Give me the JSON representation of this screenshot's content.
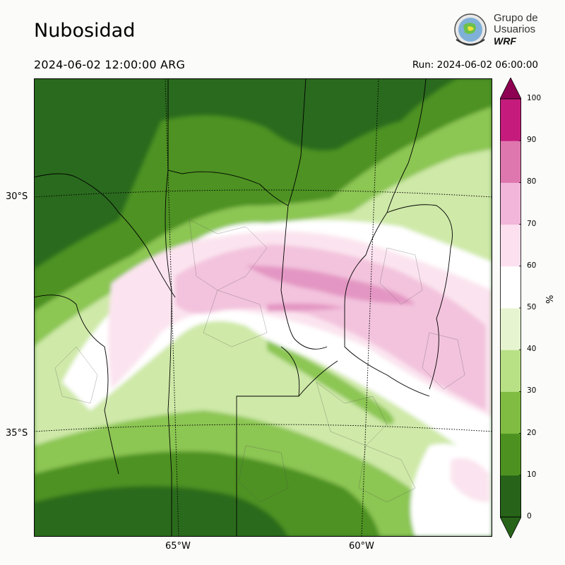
{
  "title": "Nubosidad",
  "valid_time": "2024-06-02 12:00:00 ARG",
  "run_time": "Run: 2024-06-02 06:00:00",
  "logo": {
    "line1": "Grupo de",
    "line2": "Usuarios",
    "line3": "WRF"
  },
  "lat_labels": [
    "30°S",
    "35°S"
  ],
  "lon_labels": [
    "65°W",
    "60°W"
  ],
  "colorbar": {
    "unit": "%",
    "ticks": [
      "0",
      "10",
      "20",
      "30",
      "40",
      "50",
      "60",
      "70",
      "80",
      "90",
      "100"
    ],
    "colors": [
      "#276419",
      "#4d9221",
      "#7fbc41",
      "#b8e186",
      "#e6f5d0",
      "#ffffff",
      "#fde0ef",
      "#f1b6da",
      "#de77ae",
      "#c51b7d",
      "#8e0152"
    ]
  },
  "palette": {
    "dark_green": "#2a6a1e",
    "green": "#4d9221",
    "light_green": "#8cc653",
    "pale_green": "#cfe9a8",
    "white": "#ffffff",
    "pale_pink": "#fbe4ef",
    "pink": "#f3c3dd",
    "mid_pink": "#e396c3"
  }
}
